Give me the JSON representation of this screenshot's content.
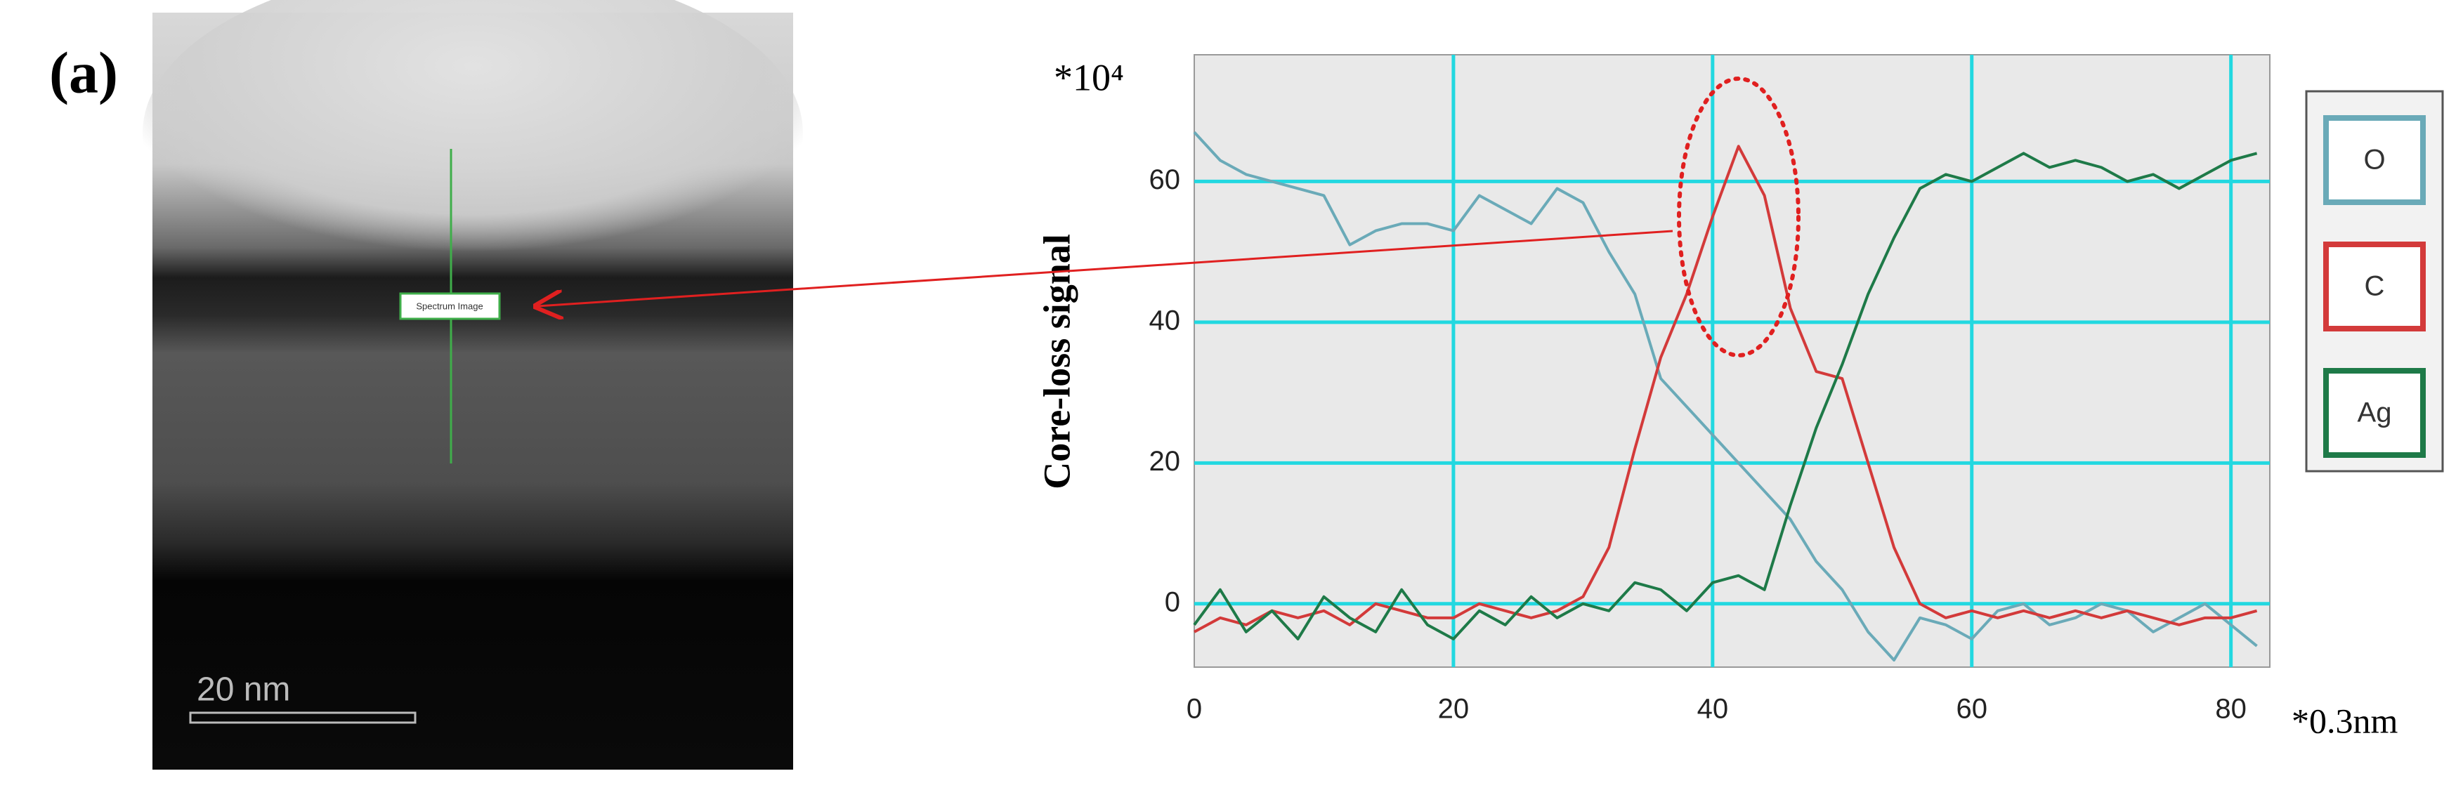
{
  "panel_label": "(a)",
  "image": {
    "scale_bar_label": "20 nm",
    "box_label": "Spectrum Image"
  },
  "chart_data": {
    "type": "line",
    "y_multiplier": "*10⁴",
    "y_label": "Core-loss signal",
    "x_label": "*0.3nm",
    "x": [
      0,
      2,
      4,
      6,
      8,
      10,
      12,
      14,
      16,
      18,
      20,
      22,
      24,
      26,
      28,
      30,
      32,
      34,
      36,
      38,
      40,
      42,
      44,
      46,
      48,
      50,
      52,
      54,
      56,
      58,
      60,
      62,
      64,
      66,
      68,
      70,
      72,
      74,
      76,
      78,
      80,
      82
    ],
    "series": [
      {
        "name": "O",
        "color": "#6aaab8",
        "values": [
          67,
          63,
          61,
          60,
          59,
          58,
          51,
          53,
          54,
          54,
          53,
          58,
          56,
          54,
          59,
          57,
          50,
          44,
          32,
          28,
          24,
          20,
          16,
          12,
          6,
          2,
          -4,
          -8,
          -2,
          -3,
          -5,
          -1,
          0,
          -3,
          -2,
          0,
          -1,
          -4,
          -2,
          0,
          -3,
          -6
        ]
      },
      {
        "name": "C",
        "color": "#d33a3a",
        "values": [
          -4,
          -2,
          -3,
          -1,
          -2,
          -1,
          -3,
          0,
          -1,
          -2,
          -2,
          0,
          -1,
          -2,
          -1,
          1,
          8,
          22,
          35,
          44,
          55,
          65,
          58,
          42,
          33,
          32,
          20,
          8,
          0,
          -2,
          -1,
          -2,
          -1,
          -2,
          -1,
          -2,
          -1,
          -2,
          -3,
          -2,
          -2,
          -1
        ]
      },
      {
        "name": "Ag",
        "color": "#1e7a48",
        "values": [
          -3,
          2,
          -4,
          -1,
          -5,
          1,
          -2,
          -4,
          2,
          -3,
          -5,
          -1,
          -3,
          1,
          -2,
          0,
          -1,
          3,
          2,
          -1,
          3,
          4,
          2,
          14,
          25,
          34,
          44,
          52,
          59,
          61,
          60,
          62,
          64,
          62,
          63,
          62,
          60,
          61,
          59,
          61,
          63,
          64
        ]
      }
    ],
    "xlim": [
      0,
      83
    ],
    "xticks": [
      0,
      20,
      40,
      60,
      80
    ],
    "ylim": [
      -9,
      78
    ],
    "yticks": [
      0,
      20,
      40,
      60
    ],
    "grid": true
  }
}
